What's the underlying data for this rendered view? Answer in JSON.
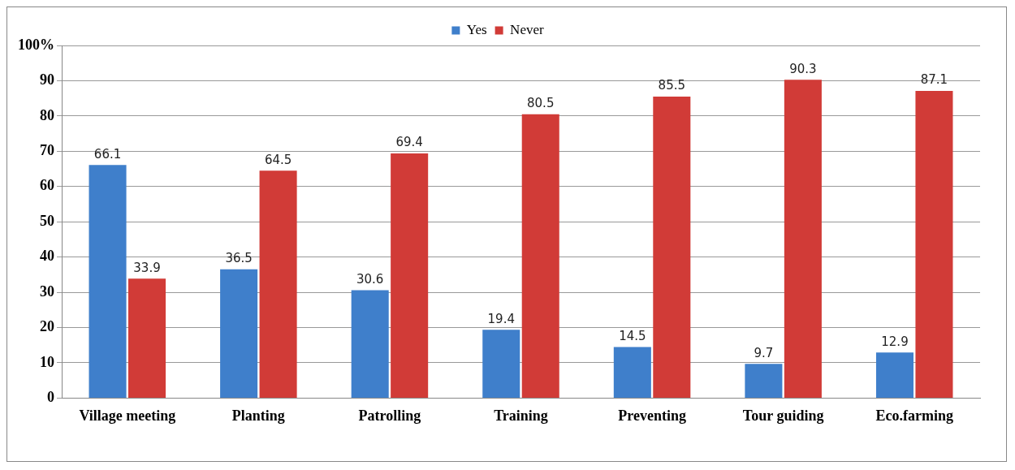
{
  "chart_data": {
    "type": "bar",
    "categories": [
      "Village meeting",
      "Planting",
      "Patrolling",
      "Training",
      "Preventing",
      "Tour guiding",
      "Eco.farming"
    ],
    "series": [
      {
        "name": "Yes",
        "color": "#3f7fcb",
        "values": [
          66.1,
          36.5,
          30.6,
          19.4,
          14.5,
          9.7,
          12.9
        ]
      },
      {
        "name": "Never",
        "color": "#d13b37",
        "values": [
          33.9,
          64.5,
          69.4,
          80.5,
          85.5,
          90.3,
          87.1
        ]
      }
    ],
    "ylim": [
      0,
      100
    ],
    "yticks": [
      0,
      10,
      20,
      30,
      40,
      50,
      60,
      70,
      80,
      90,
      {
        "value": 100,
        "label": "100%"
      }
    ],
    "grid": "y",
    "legend": "top",
    "data_labels": true
  }
}
